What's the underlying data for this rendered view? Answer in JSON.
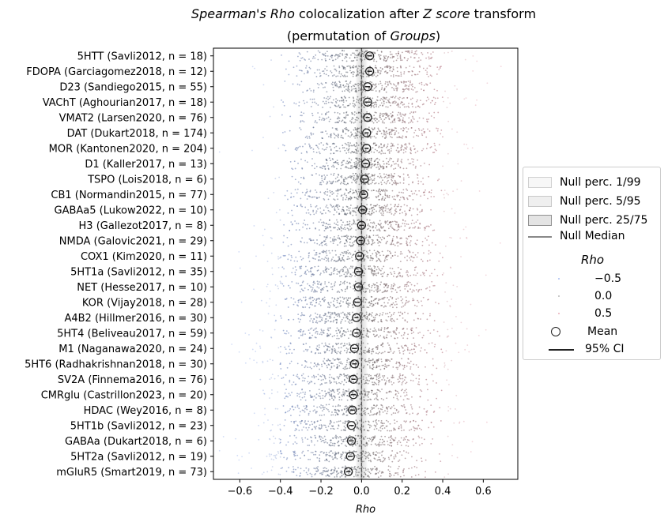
{
  "title_parts": [
    {
      "text": "Spearman's Rho",
      "italic": true
    },
    {
      "text": " colocalization after ",
      "italic": false
    },
    {
      "text": "Z score",
      "italic": true
    },
    {
      "text": " transform",
      "italic": false
    }
  ],
  "subtitle_parts": [
    {
      "text": "(permutation of ",
      "italic": false
    },
    {
      "text": "Groups",
      "italic": true
    },
    {
      "text": ")",
      "italic": false
    }
  ],
  "chart_data": {
    "type": "scatter",
    "xlabel": "Rho",
    "xlim": [
      -0.73,
      0.77
    ],
    "xticks": [
      "−0.6",
      "−0.4",
      "−0.2",
      "0.0",
      "0.2",
      "0.4",
      "0.6"
    ],
    "xtick_values": [
      -0.6,
      -0.4,
      -0.2,
      0.0,
      0.2,
      0.4,
      0.6
    ],
    "reference_line_x": 0.0,
    "categories": [
      "5HTT (Savli2012, n = 18)",
      "FDOPA (Garciagomez2018, n = 12)",
      "D23 (Sandiego2015, n = 55)",
      "VAChT (Aghourian2017, n = 18)",
      "VMAT2 (Larsen2020, n = 76)",
      "DAT (Dukart2018, n = 174)",
      "MOR (Kantonen2020, n = 204)",
      "D1 (Kaller2017, n = 13)",
      "TSPO (Lois2018, n = 6)",
      "CB1 (Normandin2015, n = 77)",
      "GABAa5 (Lukow2022, n = 10)",
      "H3 (Gallezot2017, n = 8)",
      "NMDA (Galovic2021, n = 29)",
      "COX1 (Kim2020, n = 11)",
      "5HT1a (Savli2012, n = 35)",
      "NET (Hesse2017, n = 10)",
      "KOR (Vijay2018, n = 28)",
      "A4B2 (Hillmer2016, n = 30)",
      "5HT4 (Beliveau2017, n = 59)",
      "M1 (Naganawa2020, n = 24)",
      "5HT6 (Radhakrishnan2018, n = 30)",
      "SV2A (Finnema2016, n = 76)",
      "CMRglu (Castrillon2023, n = 20)",
      "HDAC (Wey2016, n = 8)",
      "5HT1b (Savli2012, n = 23)",
      "GABAa (Dukart2018, n = 6)",
      "5HT2a (Savli2012, n = 19)",
      "mGluR5 (Smart2019, n = 73)"
    ],
    "means": [
      0.04,
      0.04,
      0.03,
      0.03,
      0.03,
      0.025,
      0.025,
      0.02,
      0.015,
      0.01,
      0.005,
      0.0,
      -0.005,
      -0.01,
      -0.015,
      -0.015,
      -0.02,
      -0.025,
      -0.025,
      -0.035,
      -0.035,
      -0.04,
      -0.04,
      -0.045,
      -0.05,
      -0.05,
      -0.055,
      -0.065
    ],
    "ci_halfwidth": [
      0.012,
      0.012,
      0.012,
      0.014,
      0.01,
      0.01,
      0.01,
      0.012,
      0.012,
      0.01,
      0.012,
      0.012,
      0.01,
      0.012,
      0.012,
      0.012,
      0.012,
      0.01,
      0.01,
      0.012,
      0.012,
      0.01,
      0.012,
      0.012,
      0.012,
      0.012,
      0.012,
      0.01
    ],
    "point_spread_sd": [
      0.2,
      0.17,
      0.18,
      0.2,
      0.17,
      0.17,
      0.2,
      0.14,
      0.14,
      0.2,
      0.16,
      0.2,
      0.18,
      0.2,
      0.19,
      0.2,
      0.2,
      0.19,
      0.2,
      0.2,
      0.2,
      0.19,
      0.19,
      0.2,
      0.22,
      0.19,
      0.21,
      0.18
    ],
    "null_bands": {
      "p1_99": [
        -0.028,
        0.028
      ],
      "p5_95": [
        -0.02,
        0.02
      ],
      "p25_75": [
        -0.008,
        0.008
      ],
      "median": 0.0
    },
    "colormap": {
      "low": "#6a8ee6",
      "mid": "#555555",
      "high": "#d9788a"
    }
  },
  "legend": {
    "items": [
      {
        "label": "Null perc. 1/99",
        "kind": "band1"
      },
      {
        "label": "Null perc. 5/95",
        "kind": "band2"
      },
      {
        "label": "Null perc. 25/75",
        "kind": "band3"
      },
      {
        "label": "Null Median",
        "kind": "line"
      }
    ],
    "rho_title": "Rho",
    "rho_items": [
      {
        "label": "−0.5",
        "color": "#6a8ee6"
      },
      {
        "label": "0.0",
        "color": "#888888"
      },
      {
        "label": "0.5",
        "color": "#d9788a"
      }
    ],
    "mean_label": "Mean",
    "ci_label": "95% CI"
  }
}
